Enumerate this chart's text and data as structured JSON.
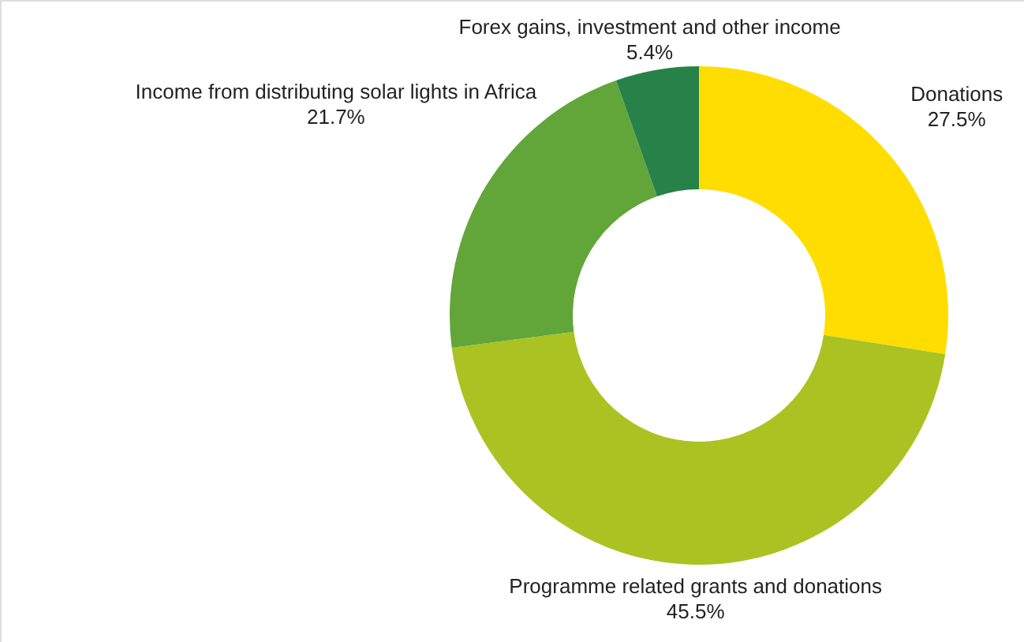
{
  "chart_data": {
    "type": "donut",
    "categories": [
      "Donations",
      "Programme related grants and donations",
      "Income from distributing solar lights in Africa",
      "Forex gains, investment and other income"
    ],
    "values": [
      27.5,
      45.5,
      21.7,
      5.4
    ],
    "value_labels": [
      "27.5%",
      "45.5%",
      "21.7%",
      "5.4%"
    ],
    "colors": [
      "#ffdd00",
      "#aac322",
      "#62a63a",
      "#27824a"
    ]
  }
}
